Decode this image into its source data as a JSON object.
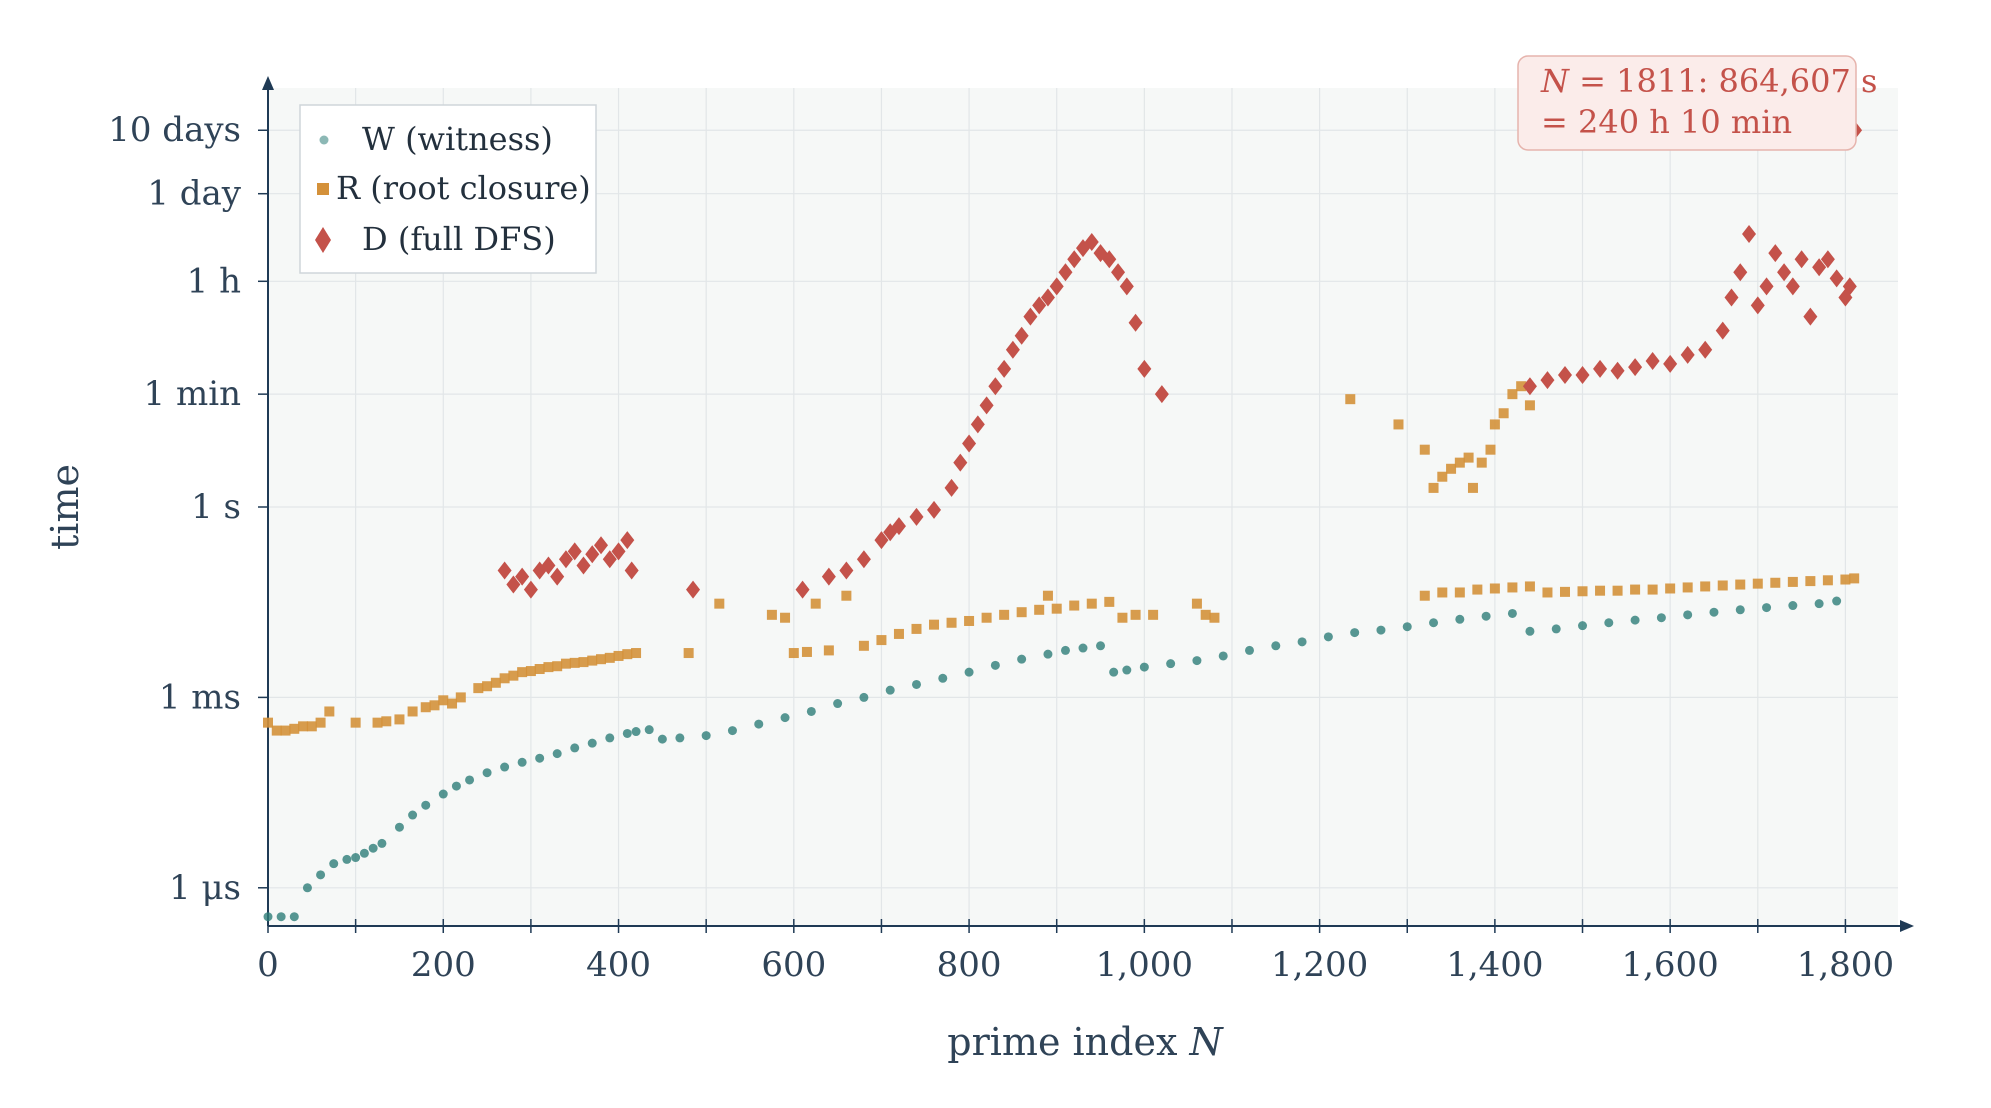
{
  "chart_data": {
    "type": "scatter",
    "title": "",
    "xlabel": "prime index",
    "xlabel_var": "N",
    "ylabel": "time",
    "yscale": "log",
    "grid": true,
    "legend_position": "top-left",
    "xlim": [
      0,
      1860
    ],
    "ylim": [
      2.5e-07,
      4000000
    ],
    "x_ticks": [
      {
        "v": 0,
        "label": "0"
      },
      {
        "v": 200,
        "label": "200"
      },
      {
        "v": 400,
        "label": "400"
      },
      {
        "v": 600,
        "label": "600"
      },
      {
        "v": 800,
        "label": "800"
      },
      {
        "v": 1000,
        "label": "1,000"
      },
      {
        "v": 1200,
        "label": "1,200"
      },
      {
        "v": 1400,
        "label": "1,400"
      },
      {
        "v": 1600,
        "label": "1,600"
      },
      {
        "v": 1800,
        "label": "1,800"
      }
    ],
    "y_ticks": [
      {
        "v": 1e-06,
        "label": "1 μs"
      },
      {
        "v": 0.001,
        "label": "1 ms"
      },
      {
        "v": 1,
        "label": "1 s"
      },
      {
        "v": 60,
        "label": "1 min"
      },
      {
        "v": 3600,
        "label": "1 h"
      },
      {
        "v": 86400,
        "label": "1 day"
      },
      {
        "v": 864000,
        "label": "10 days"
      }
    ],
    "colors": {
      "W": "#2e7d78",
      "R": "#d4913a",
      "D": "#c4524a",
      "plot_bg": "#f6f8f7",
      "grid": "#e2e6e8",
      "axis": "#1f3a55"
    },
    "annotation": {
      "line1_var": "N",
      "line1": "= 1811: 864,607 s",
      "line2": "= 240 h 10 min"
    },
    "series": [
      {
        "key": "W",
        "name": "W (witness)",
        "marker": "circle",
        "color": "#2e7d78",
        "x": [
          0,
          15,
          30,
          45,
          60,
          75,
          90,
          100,
          110,
          120,
          130,
          150,
          165,
          180,
          200,
          215,
          230,
          250,
          270,
          290,
          310,
          330,
          350,
          370,
          390,
          410,
          420,
          435,
          450,
          470,
          500,
          530,
          560,
          590,
          620,
          650,
          680,
          710,
          740,
          770,
          800,
          830,
          860,
          890,
          910,
          930,
          950,
          965,
          980,
          1000,
          1030,
          1060,
          1090,
          1120,
          1150,
          1180,
          1210,
          1240,
          1270,
          1300,
          1330,
          1360,
          1390,
          1420,
          1440,
          1470,
          1500,
          1530,
          1560,
          1590,
          1620,
          1650,
          1680,
          1710,
          1740,
          1770,
          1790
        ],
        "y": [
          3.5e-07,
          3.5e-07,
          3.5e-07,
          1e-06,
          1.6e-06,
          2.4e-06,
          2.8e-06,
          3e-06,
          3.5e-06,
          4.2e-06,
          5e-06,
          9e-06,
          1.4e-05,
          2e-05,
          3e-05,
          4e-05,
          5e-05,
          6.5e-05,
          8e-05,
          9.5e-05,
          0.00011,
          0.00013,
          0.00016,
          0.00019,
          0.00023,
          0.00027,
          0.00029,
          0.00031,
          0.00022,
          0.00023,
          0.00025,
          0.0003,
          0.00038,
          0.00048,
          0.0006,
          0.0008,
          0.001,
          0.0013,
          0.0016,
          0.002,
          0.0025,
          0.0032,
          0.004,
          0.0048,
          0.0055,
          0.006,
          0.0065,
          0.0025,
          0.0027,
          0.003,
          0.0034,
          0.0038,
          0.0045,
          0.0055,
          0.0065,
          0.0075,
          0.009,
          0.0105,
          0.0115,
          0.013,
          0.015,
          0.017,
          0.019,
          0.021,
          0.011,
          0.012,
          0.0135,
          0.015,
          0.0165,
          0.018,
          0.02,
          0.022,
          0.024,
          0.026,
          0.028,
          0.03,
          0.033
        ]
      },
      {
        "key": "R",
        "name": "R (root closure)",
        "marker": "square",
        "color": "#d4913a",
        "x": [
          0,
          10,
          20,
          30,
          40,
          50,
          60,
          70,
          100,
          125,
          135,
          150,
          165,
          180,
          190,
          200,
          210,
          220,
          240,
          250,
          260,
          270,
          280,
          290,
          300,
          310,
          320,
          330,
          340,
          350,
          360,
          370,
          380,
          390,
          400,
          410,
          420,
          480,
          515,
          575,
          590,
          600,
          615,
          625,
          640,
          660,
          680,
          700,
          720,
          740,
          760,
          780,
          800,
          820,
          840,
          860,
          880,
          890,
          900,
          920,
          940,
          960,
          975,
          990,
          1010,
          1060,
          1070,
          1080,
          1235,
          1290,
          1320,
          1330,
          1340,
          1350,
          1360,
          1370,
          1375,
          1385,
          1395,
          1400,
          1410,
          1420,
          1430,
          1440,
          1320,
          1340,
          1360,
          1380,
          1400,
          1420,
          1440,
          1460,
          1480,
          1500,
          1520,
          1540,
          1560,
          1580,
          1600,
          1620,
          1640,
          1660,
          1680,
          1700,
          1720,
          1740,
          1760,
          1780,
          1800,
          1810
        ],
        "y": [
          0.0004,
          0.0003,
          0.0003,
          0.00032,
          0.00035,
          0.00035,
          0.0004,
          0.0006,
          0.0004,
          0.0004,
          0.00042,
          0.00045,
          0.0006,
          0.0007,
          0.00075,
          0.0009,
          0.0008,
          0.001,
          0.0014,
          0.0015,
          0.0017,
          0.002,
          0.0022,
          0.0025,
          0.0026,
          0.0028,
          0.003,
          0.0031,
          0.0034,
          0.0035,
          0.0036,
          0.0038,
          0.004,
          0.0042,
          0.0045,
          0.0048,
          0.005,
          0.005,
          0.03,
          0.02,
          0.018,
          0.005,
          0.0052,
          0.03,
          0.0055,
          0.04,
          0.0065,
          0.008,
          0.01,
          0.012,
          0.014,
          0.015,
          0.016,
          0.018,
          0.02,
          0.022,
          0.024,
          0.04,
          0.025,
          0.028,
          0.03,
          0.032,
          0.018,
          0.02,
          0.02,
          0.03,
          0.02,
          0.018,
          50,
          20,
          8,
          2,
          3,
          4,
          5,
          6,
          2,
          5,
          8,
          20,
          30,
          60,
          80,
          40,
          0.04,
          0.045,
          0.045,
          0.05,
          0.052,
          0.054,
          0.056,
          0.045,
          0.046,
          0.047,
          0.048,
          0.048,
          0.05,
          0.05,
          0.052,
          0.054,
          0.056,
          0.058,
          0.06,
          0.062,
          0.064,
          0.066,
          0.068,
          0.07,
          0.072,
          0.075
        ],
        "ruleNote": ""
      },
      {
        "key": "D",
        "name": "D (full DFS)",
        "marker": "diamond",
        "color": "#c4524a",
        "x": [
          270,
          280,
          290,
          300,
          310,
          320,
          330,
          340,
          350,
          360,
          370,
          380,
          390,
          400,
          410,
          415,
          485,
          610,
          640,
          660,
          680,
          700,
          710,
          720,
          740,
          760,
          780,
          790,
          800,
          810,
          820,
          830,
          840,
          850,
          860,
          870,
          880,
          890,
          900,
          910,
          920,
          930,
          940,
          950,
          960,
          970,
          980,
          990,
          1000,
          1020,
          1440,
          1460,
          1480,
          1500,
          1520,
          1540,
          1560,
          1580,
          1600,
          1620,
          1640,
          1660,
          1670,
          1680,
          1690,
          1700,
          1710,
          1720,
          1730,
          1740,
          1750,
          1760,
          1770,
          1780,
          1790,
          1800,
          1805,
          1811
        ],
        "y": [
          0.1,
          0.06,
          0.08,
          0.05,
          0.1,
          0.12,
          0.08,
          0.15,
          0.2,
          0.12,
          0.18,
          0.25,
          0.15,
          0.2,
          0.3,
          0.1,
          0.05,
          0.05,
          0.08,
          0.1,
          0.15,
          0.3,
          0.4,
          0.5,
          0.7,
          0.9,
          2,
          5,
          10,
          20,
          40,
          80,
          150,
          300,
          500,
          1000,
          1500,
          2000,
          3000,
          5000,
          8000,
          12000,
          15000,
          10000,
          8000,
          5000,
          3000,
          800,
          150,
          60,
          80,
          100,
          120,
          120,
          150,
          140,
          160,
          200,
          180,
          250,
          300,
          600,
          2000,
          5000,
          20000,
          1500,
          3000,
          10000,
          5000,
          3000,
          8000,
          1000,
          6000,
          8000,
          4000,
          2000,
          3000,
          864607
        ]
      }
    ]
  }
}
